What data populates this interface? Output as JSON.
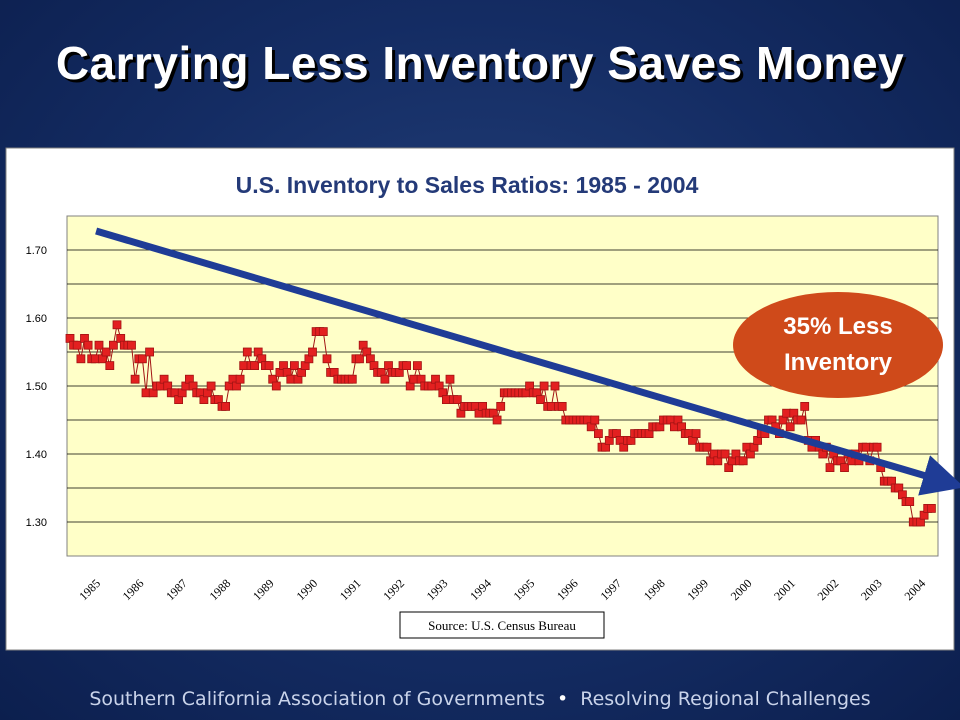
{
  "slide": {
    "title": "Carrying Less Inventory Saves Money",
    "footer_left": "Southern California Association of Governments",
    "footer_separator": "•",
    "footer_right": "Resolving Regional Challenges"
  },
  "chart_data": {
    "type": "line",
    "title": "U.S. Inventory to Sales Ratios: 1985 - 2004",
    "xlabel": "",
    "ylabel": "",
    "x_tick_labels": [
      "1985",
      "1986",
      "1987",
      "1988",
      "1989",
      "1990",
      "1991",
      "1992",
      "1993",
      "1994",
      "1995",
      "1996",
      "1997",
      "1998",
      "1999",
      "2000",
      "2001",
      "2002",
      "2003",
      "2004"
    ],
    "y_tick_labels": [
      "1.30",
      "1.40",
      "1.50",
      "1.60",
      "1.70"
    ],
    "ylim": [
      1.25,
      1.75
    ],
    "xlim": [
      1985,
      2004.917
    ],
    "grid": true,
    "series": [
      {
        "start_year": 1985,
        "frequency": "monthly",
        "values": [
          1.57,
          1.56,
          1.56,
          1.54,
          1.57,
          1.56,
          1.54,
          1.54,
          1.56,
          1.54,
          1.55,
          1.53,
          1.56,
          1.59,
          1.57,
          1.56,
          1.56,
          1.56,
          1.51,
          1.54,
          1.54,
          1.49,
          1.55,
          1.49,
          1.5,
          1.5,
          1.51,
          1.5,
          1.49,
          1.49,
          1.48,
          1.49,
          1.5,
          1.51,
          1.5,
          1.49,
          1.49,
          1.48,
          1.49,
          1.5,
          1.48,
          1.48,
          1.47,
          1.47,
          1.5,
          1.51,
          1.5,
          1.51,
          1.53,
          1.55,
          1.53,
          1.53,
          1.55,
          1.54,
          1.53,
          1.53,
          1.51,
          1.5,
          1.52,
          1.53,
          1.52,
          1.51,
          1.53,
          1.51,
          1.52,
          1.53,
          1.54,
          1.55,
          1.58,
          1.58,
          1.58,
          1.54,
          1.52,
          1.52,
          1.51,
          1.51,
          1.51,
          1.51,
          1.51,
          1.54,
          1.54,
          1.56,
          1.55,
          1.54,
          1.53,
          1.52,
          1.52,
          1.51,
          1.53,
          1.52,
          1.52,
          1.52,
          1.53,
          1.53,
          1.5,
          1.51,
          1.53,
          1.51,
          1.5,
          1.5,
          1.5,
          1.51,
          1.5,
          1.49,
          1.48,
          1.51,
          1.48,
          1.48,
          1.46,
          1.47,
          1.47,
          1.47,
          1.47,
          1.46,
          1.47,
          1.46,
          1.46,
          1.46,
          1.45,
          1.47,
          1.49,
          1.49,
          1.49,
          1.49,
          1.49,
          1.49,
          1.49,
          1.5,
          1.49,
          1.49,
          1.48,
          1.5,
          1.47,
          1.47,
          1.5,
          1.47,
          1.47,
          1.45,
          1.45,
          1.45,
          1.45,
          1.45,
          1.45,
          1.45,
          1.44,
          1.45,
          1.43,
          1.41,
          1.41,
          1.42,
          1.43,
          1.43,
          1.42,
          1.41,
          1.42,
          1.42,
          1.43,
          1.43,
          1.43,
          1.43,
          1.43,
          1.44,
          1.44,
          1.44,
          1.45,
          1.45,
          1.45,
          1.44,
          1.45,
          1.44,
          1.43,
          1.43,
          1.42,
          1.43,
          1.41,
          1.41,
          1.41,
          1.39,
          1.4,
          1.39,
          1.4,
          1.4,
          1.38,
          1.39,
          1.4,
          1.39,
          1.39,
          1.41,
          1.4,
          1.41,
          1.42,
          1.43,
          1.43,
          1.45,
          1.45,
          1.44,
          1.43,
          1.45,
          1.46,
          1.44,
          1.46,
          1.45,
          1.45,
          1.47,
          1.42,
          1.41,
          1.42,
          1.41,
          1.4,
          1.41,
          1.38,
          1.4,
          1.39,
          1.39,
          1.38,
          1.4,
          1.39,
          1.4,
          1.39,
          1.41,
          1.41,
          1.39,
          1.41,
          1.41,
          1.38,
          1.36,
          1.36,
          1.36,
          1.35,
          1.35,
          1.34,
          1.33,
          1.33,
          1.3,
          1.3,
          1.3,
          1.31,
          1.32,
          1.32
        ]
      }
    ],
    "annotations": {
      "trend_arrow": {
        "x_start": 1985.6,
        "y_start": 1.728,
        "x_end": 2004.85,
        "y_end": 1.365,
        "color": "#1f3c96"
      },
      "callout": {
        "lines": [
          "35% Less",
          "Inventory"
        ],
        "color": "#cf4a1a"
      },
      "source_box": "Source:  U.S. Census Bureau"
    },
    "colors": {
      "plot_background": "#ffffc8",
      "marker_fill": "#e32020",
      "marker_line": "#a11313",
      "title_color": "#243a78"
    }
  }
}
